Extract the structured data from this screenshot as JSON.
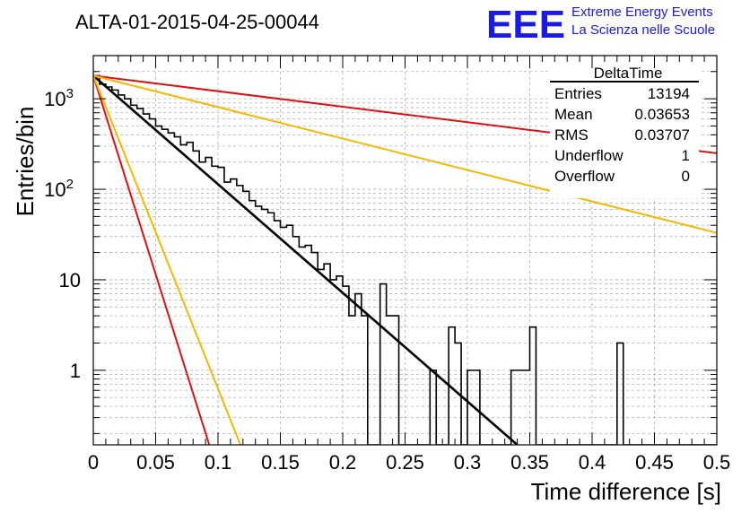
{
  "title": "ALTA-01-2015-04-25-00044",
  "logo": {
    "mark": "EEE",
    "line1": "Extreme Energy Events",
    "line2": "La Scienza nelle Scuole",
    "color": "#1a1ae6"
  },
  "chart_data": {
    "type": "line",
    "xlabel": "Time difference [s]",
    "ylabel": "Entries/bin",
    "xlim": [
      0,
      0.5
    ],
    "ylim": [
      0.15,
      3000
    ],
    "y_scale": "log",
    "grid": true,
    "x_ticks": [
      {
        "value": 0,
        "label": "0"
      },
      {
        "value": 0.05,
        "label": "0.05"
      },
      {
        "value": 0.1,
        "label": "0.1"
      },
      {
        "value": 0.15,
        "label": "0.15"
      },
      {
        "value": 0.2,
        "label": "0.2"
      },
      {
        "value": 0.25,
        "label": "0.25"
      },
      {
        "value": 0.3,
        "label": "0.3"
      },
      {
        "value": 0.35,
        "label": "0.35"
      },
      {
        "value": 0.4,
        "label": "0.4"
      },
      {
        "value": 0.45,
        "label": "0.45"
      },
      {
        "value": 0.5,
        "label": "0.5"
      }
    ],
    "y_major_ticks": [
      {
        "value": 1,
        "label": "1"
      },
      {
        "value": 10,
        "label": "10"
      },
      {
        "value": 100,
        "label": "10",
        "exp": "2"
      },
      {
        "value": 1000,
        "label": "10",
        "exp": "3"
      }
    ],
    "histogram": {
      "bin_width": 0.005,
      "color": "#000000",
      "values": [
        1800,
        1450,
        1350,
        1250,
        1100,
        1000,
        850,
        780,
        680,
        600,
        500,
        460,
        420,
        380,
        310,
        330,
        265,
        200,
        225,
        180,
        175,
        120,
        130,
        110,
        95,
        75,
        65,
        60,
        55,
        45,
        38,
        40,
        30,
        23,
        24,
        20,
        13,
        15,
        10,
        11,
        8.5,
        4,
        7,
        4,
        0,
        0,
        9,
        4,
        4,
        0,
        0,
        0,
        0,
        0,
        1,
        0,
        0,
        3,
        2,
        0,
        1,
        1,
        0,
        0,
        0,
        0,
        0,
        1,
        1,
        1,
        3,
        0,
        0,
        0,
        0,
        0,
        0,
        0,
        0,
        0,
        0,
        0,
        0,
        0,
        2,
        0,
        0,
        0,
        0,
        0,
        0,
        0,
        0,
        0,
        0,
        0,
        0,
        0,
        0,
        0
      ]
    },
    "fits": [
      {
        "color": "#000000",
        "width": 2.6,
        "points": [
          [
            0,
            1800
          ],
          [
            0.34,
            0.15
          ]
        ]
      },
      {
        "color": "#dd1111",
        "width": 2,
        "points": [
          [
            0,
            1800
          ],
          [
            0.5,
            250
          ]
        ]
      },
      {
        "color": "#dd1111",
        "width": 2,
        "points": [
          [
            0,
            1800
          ],
          [
            0.093,
            0.15
          ]
        ]
      },
      {
        "color": "#f5b800",
        "width": 2,
        "points": [
          [
            0,
            1800
          ],
          [
            0.5,
            33
          ]
        ]
      },
      {
        "color": "#f5b800",
        "width": 2,
        "points": [
          [
            0,
            1800
          ],
          [
            0.118,
            0.15
          ]
        ]
      }
    ],
    "stats": {
      "name": "DeltaTime",
      "rows": [
        {
          "label": "Entries",
          "value": "13194"
        },
        {
          "label": "Mean",
          "value": "0.03653"
        },
        {
          "label": "RMS",
          "value": "0.03707"
        },
        {
          "label": "Underflow",
          "value": "1"
        },
        {
          "label": "Overflow",
          "value": "0"
        }
      ]
    }
  }
}
